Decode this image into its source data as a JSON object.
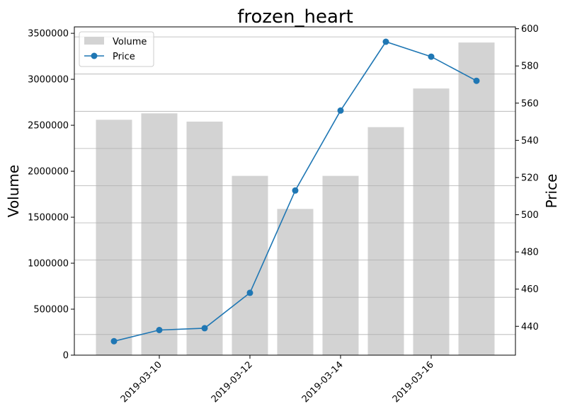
{
  "chart_data": {
    "type": "bar",
    "title": "frozen_heart",
    "x": [
      "2019-03-09",
      "2019-03-10",
      "2019-03-11",
      "2019-03-12",
      "2019-03-13",
      "2019-03-14",
      "2019-03-15",
      "2019-03-16",
      "2019-03-17"
    ],
    "x_tick_labels": [
      "2019-03-10",
      "2019-03-12",
      "2019-03-14",
      "2019-03-16"
    ],
    "series": [
      {
        "name": "Volume",
        "type": "bar",
        "axis": "left",
        "color": "#d3d3d3",
        "values": [
          2560000,
          2630000,
          2540000,
          1950000,
          1590000,
          1950000,
          2480000,
          2900000,
          3400000
        ]
      },
      {
        "name": "Price",
        "type": "line",
        "axis": "right",
        "color": "#1f77b4",
        "marker": "circle",
        "values": [
          432,
          438,
          439,
          458,
          513,
          556,
          593,
          585,
          572
        ]
      }
    ],
    "ylabel": "Volume",
    "ylabel_right": "Price",
    "ylim": [
      0,
      3570000
    ],
    "ylim_right": [
      424.5,
      601
    ],
    "yticks": [
      0,
      500000,
      1000000,
      1500000,
      2000000,
      2500000,
      3000000,
      3500000
    ],
    "yticks_right": [
      440,
      460,
      480,
      500,
      520,
      540,
      560,
      580,
      600
    ],
    "grid": "horizontal-right-axis",
    "legend_placement": "top-left"
  }
}
